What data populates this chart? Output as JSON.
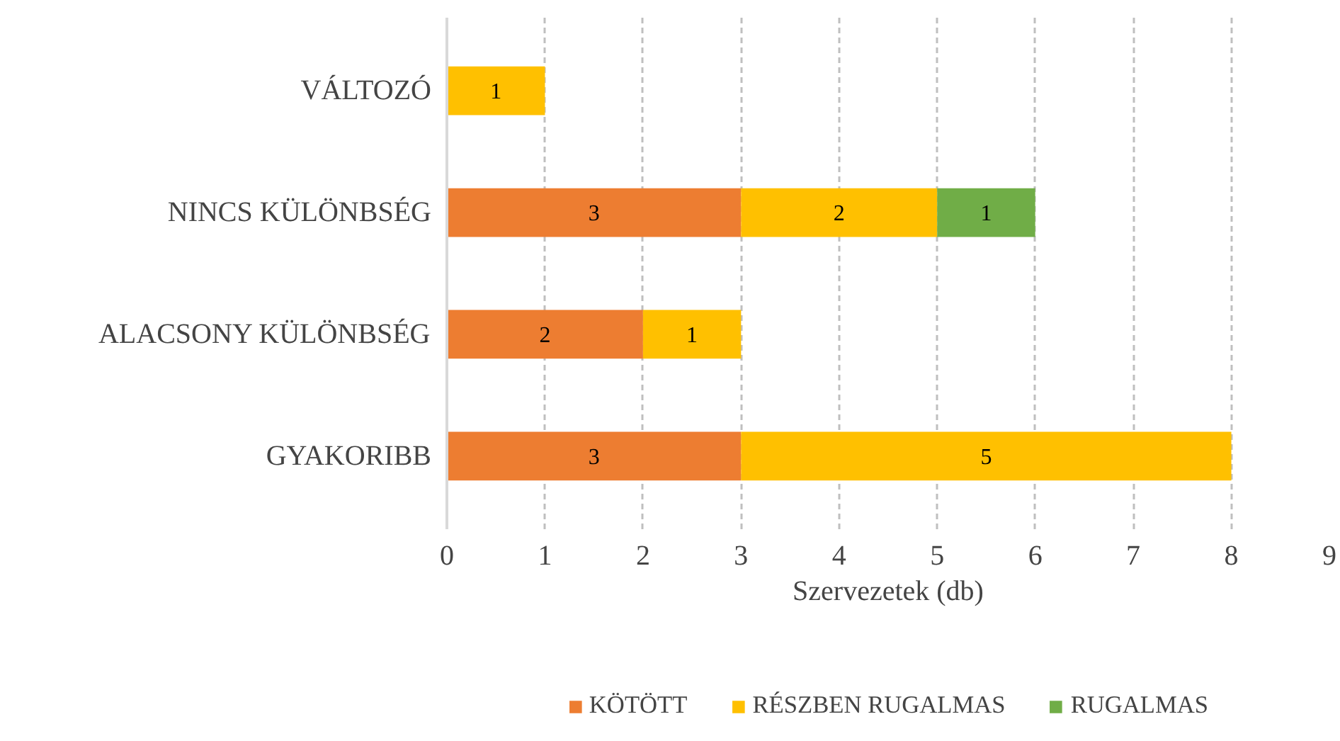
{
  "chart_data": {
    "type": "bar",
    "orientation": "horizontal",
    "stacked": true,
    "xlabel": "Szervezetek (db)",
    "categories": [
      "VÁLTOZÓ",
      "NINCS KÜLÖNBSÉG",
      "ALACSONY KÜLÖNBSÉG",
      "GYAKORIBB"
    ],
    "series": [
      {
        "name": "KÖTÖTT",
        "color": "#ed7d31",
        "values": [
          null,
          3,
          2,
          3
        ]
      },
      {
        "name": "RÉSZBEN RUGALMAS",
        "color": "#ffc000",
        "values": [
          1,
          2,
          1,
          5
        ]
      },
      {
        "name": "RUGALMAS",
        "color": "#70ad47",
        "values": [
          null,
          1,
          null,
          null
        ]
      }
    ],
    "xlim": [
      0,
      9
    ],
    "xticks": [
      0,
      1,
      2,
      3,
      4,
      5,
      6,
      7,
      8,
      9
    ],
    "grid": "x",
    "legend": "bottom",
    "data_labels": true
  }
}
